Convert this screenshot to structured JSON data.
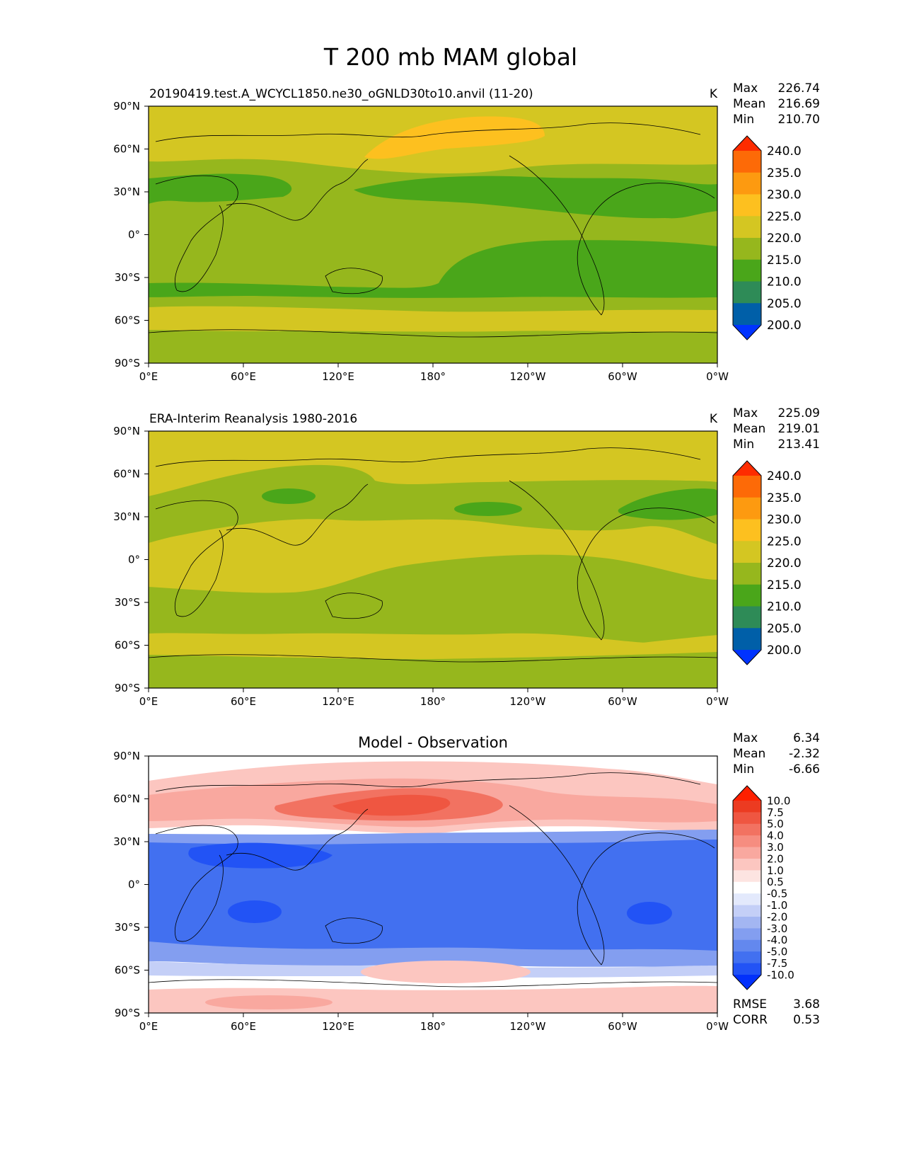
{
  "title": "T 200 mb MAM global",
  "chart_data": [
    {
      "type": "heatmap",
      "panel": "test",
      "left_title": "20190419.test.A_WCYCL1850.ne30_oGNLD30to10.anvil (11-20)",
      "center_title": "",
      "units": "K",
      "stats": [
        {
          "label": "Max",
          "value": "226.74"
        },
        {
          "label": "Mean",
          "value": "216.69"
        },
        {
          "label": "Min",
          "value": "210.70"
        }
      ],
      "colorbar": {
        "levels": [
          "200.0",
          "205.0",
          "210.0",
          "215.0",
          "220.0",
          "225.0",
          "230.0",
          "235.0",
          "240.0"
        ],
        "colors": [
          "#0033ff",
          "#005fa8",
          "#2e8b57",
          "#4aa61a",
          "#96b71d",
          "#d4c622",
          "#fdc01f",
          "#fd9a10",
          "#fd6a07",
          "#fe2c00"
        ],
        "extend": "both"
      },
      "xticks": [
        "0°E",
        "60°E",
        "120°E",
        "180°",
        "120°W",
        "60°W",
        "0°W"
      ],
      "yticks": [
        "90°N",
        "60°N",
        "30°N",
        "0°",
        "30°S",
        "60°S",
        "90°S"
      ],
      "x_range": [
        0,
        360
      ],
      "y_range": [
        -90,
        90
      ],
      "field_summary": "mostly 215-220 K tropics, 210-215 K subtropical jets near 30N and 40S, 220-225 K high latitudes, 225-230 K over North Pacific near 60N"
    },
    {
      "type": "heatmap",
      "panel": "reference",
      "left_title": "ERA-Interim Reanalysis 1980-2016",
      "center_title": "",
      "units": "K",
      "stats": [
        {
          "label": "Max",
          "value": "225.09"
        },
        {
          "label": "Mean",
          "value": "219.01"
        },
        {
          "label": "Min",
          "value": "213.41"
        }
      ],
      "colorbar": {
        "levels": [
          "200.0",
          "205.0",
          "210.0",
          "215.0",
          "220.0",
          "225.0",
          "230.0",
          "235.0",
          "240.0"
        ],
        "colors": [
          "#0033ff",
          "#005fa8",
          "#2e8b57",
          "#4aa61a",
          "#96b71d",
          "#d4c622",
          "#fdc01f",
          "#fd9a10",
          "#fd6a07",
          "#fe2c00"
        ],
        "extend": "both"
      },
      "xticks": [
        "0°E",
        "60°E",
        "120°E",
        "180°",
        "120°W",
        "60°W",
        "0°W"
      ],
      "yticks": [
        "90°N",
        "60°N",
        "30°N",
        "0°",
        "30°S",
        "60°S",
        "90°S"
      ],
      "x_range": [
        0,
        360
      ],
      "y_range": [
        -90,
        90
      ],
      "field_summary": "mostly 220-225 K tropics and polar regions, 215-220 K midlatitudes, small 210-215 K patches near 40N"
    },
    {
      "type": "heatmap",
      "panel": "difference",
      "left_title": "",
      "center_title": "Model - Observation",
      "units": "",
      "stats": [
        {
          "label": "Max",
          "value": "6.34"
        },
        {
          "label": "Mean",
          "value": "-2.32"
        },
        {
          "label": "Min",
          "value": "-6.66"
        }
      ],
      "colorbar": {
        "levels": [
          "-10.0",
          "-7.5",
          "-5.0",
          "-4.0",
          "-3.0",
          "-2.0",
          "-1.0",
          "-0.5",
          "0.5",
          "1.0",
          "2.0",
          "3.0",
          "4.0",
          "5.0",
          "7.5",
          "10.0"
        ],
        "colors": [
          "#0230fb",
          "#2253f5",
          "#4270f0",
          "#6388ee",
          "#839ef0",
          "#a3b6f2",
          "#c4cff7",
          "#e3e9fc",
          "#ffffff",
          "#fde4e1",
          "#fcc6c0",
          "#f9a89f",
          "#f68d80",
          "#f27261",
          "#ef5641",
          "#ec3b21",
          "#fe2000"
        ],
        "extend": "both"
      },
      "xticks": [
        "0°E",
        "60°E",
        "120°E",
        "180°",
        "120°W",
        "60°W",
        "0°W"
      ],
      "yticks": [
        "90°N",
        "60°N",
        "30°N",
        "0°",
        "30°S",
        "60°S",
        "90°S"
      ],
      "x_range": [
        0,
        360
      ],
      "y_range": [
        -90,
        90
      ],
      "footer_stats": [
        {
          "label": "RMSE",
          "value": "3.68"
        },
        {
          "label": "CORR",
          "value": "0.53"
        }
      ],
      "field_summary": "warm bias 2-7.5 K north of 40N (max over NW Pacific), cold bias -2 to -5 K across tropics 40S-30N, near zero to slight warm in southern high latitudes"
    }
  ]
}
